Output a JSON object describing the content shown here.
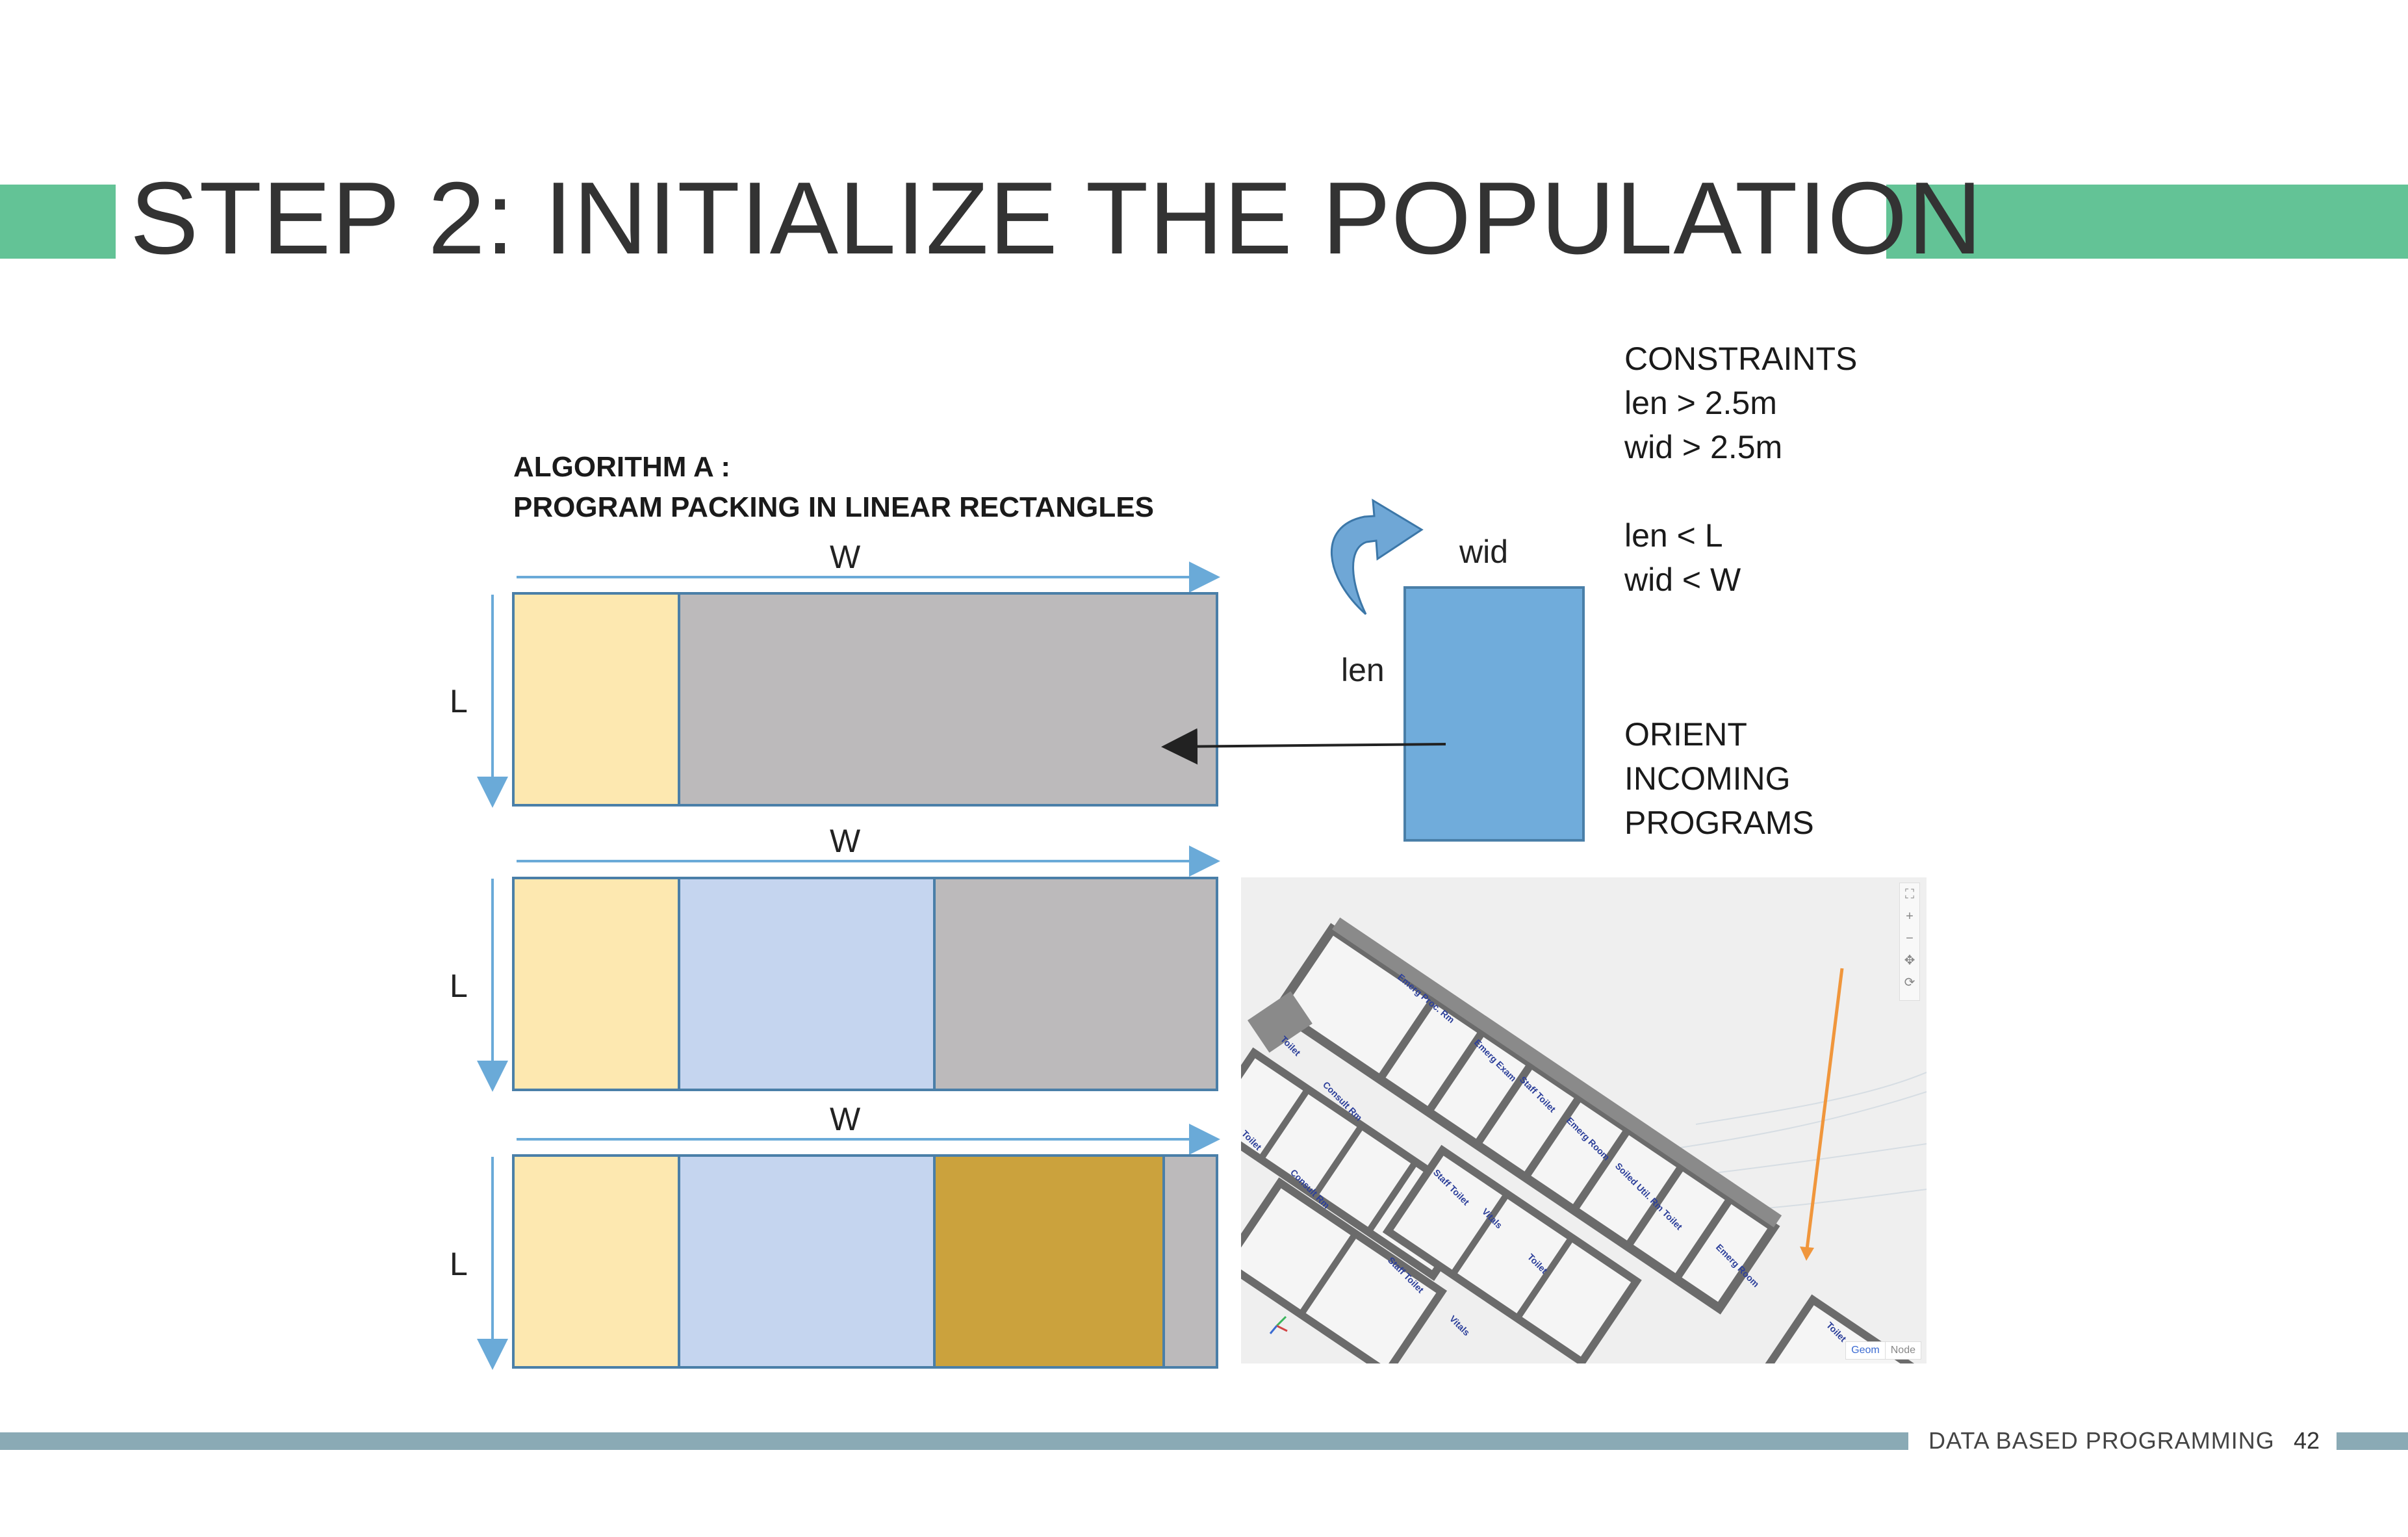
{
  "slide": {
    "title": "STEP 2: INITIALIZE THE POPULATION",
    "accent_color": "#63c396",
    "footer_color": "#8aaab5"
  },
  "algorithm": {
    "line1": "ALGORITHM A :",
    "line2": "PROGRAM PACKING IN LINEAR RECTANGLES"
  },
  "diagram": {
    "width_label": "W",
    "length_label": "L",
    "program_wid_label": "wid",
    "program_len_label": "len",
    "colors": {
      "remaining": "#bcbabb",
      "program_1": "#fde8b0",
      "program_2": "#c5d5ef",
      "program_3": "#cba23d",
      "incoming_program": "#70acdb",
      "border": "#4a7fa8",
      "arrow": "#6aaad8"
    }
  },
  "constraints": {
    "heading": "CONSTRAINTS",
    "lines": [
      "len > 2.5m",
      "wid > 2.5m",
      "len < L",
      "wid < W"
    ]
  },
  "orient": {
    "lines": [
      "ORIENT",
      "INCOMING",
      "PROGRAMS"
    ]
  },
  "screenshot": {
    "room_labels": [
      "Emerg Proc. Rm",
      "Emerg Exam",
      "Staff Toilet",
      "Emerg Room",
      "Soiled Util. Rm Toilet",
      "Emerg Room",
      "Toilet",
      "Consult Rm",
      "Toilet",
      "Consult Rm",
      "Staff Toilet",
      "Vitals",
      "Toilet",
      "Staff Toilet",
      "Vitals",
      "Toilet"
    ],
    "tools": [
      "⛶",
      "+",
      "−",
      "✥",
      "⟳"
    ],
    "tabs": [
      "Geom",
      "Node"
    ]
  },
  "footer": {
    "label": "DATA BASED PROGRAMMING",
    "page": "42"
  }
}
